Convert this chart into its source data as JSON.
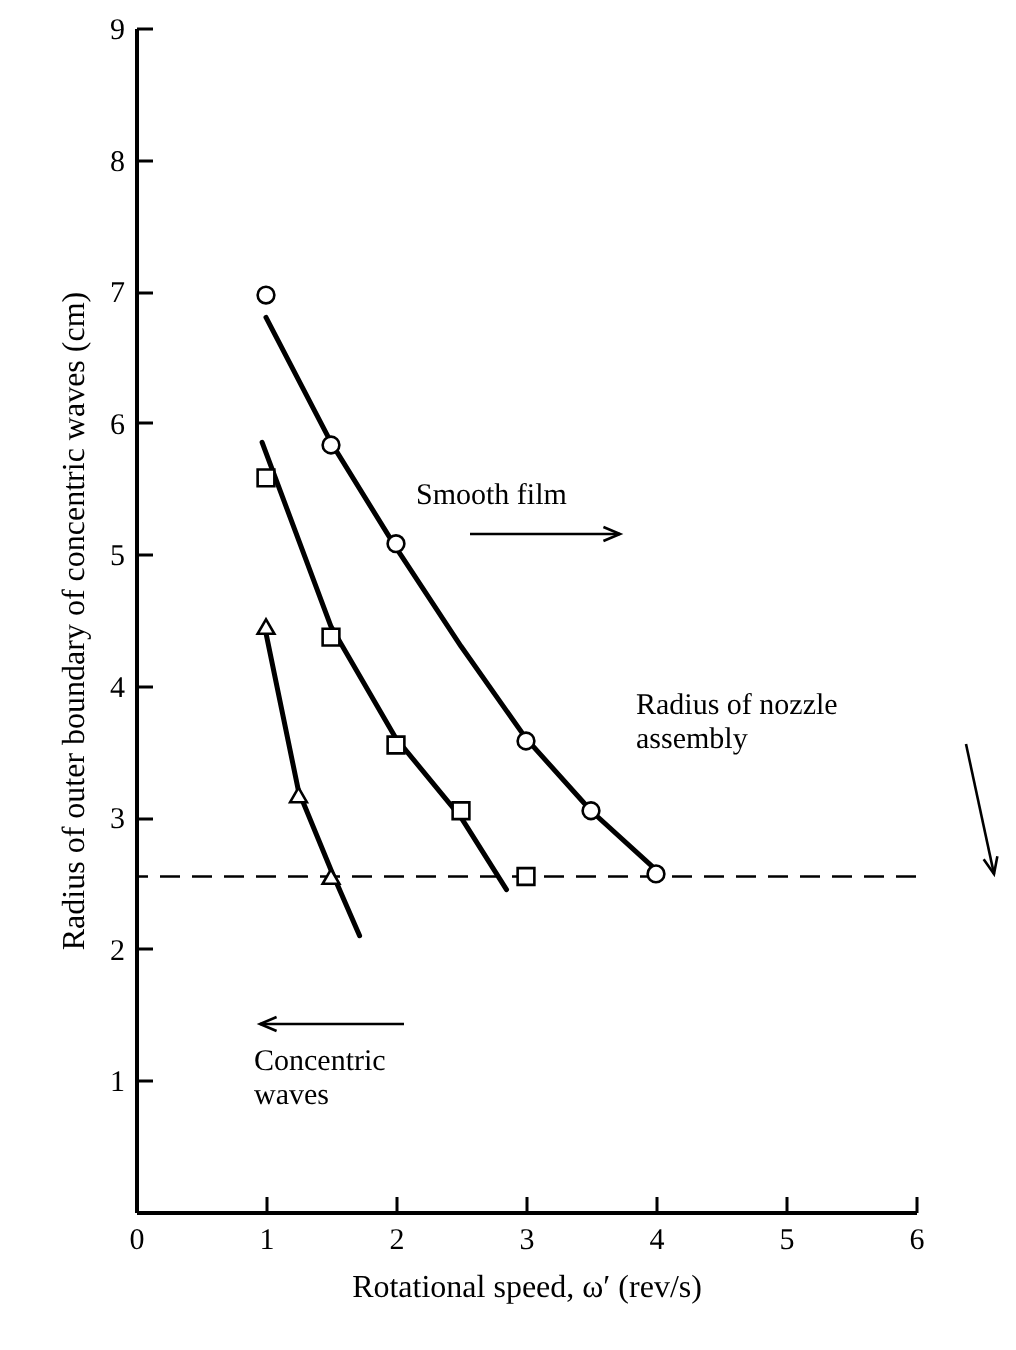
{
  "chart_data": {
    "type": "scatter",
    "xlabel": "Rotational speed, ω′ (rev/s)",
    "ylabel": "Radius of outer boundary of concentric waves (cm)",
    "xlim": [
      0,
      6
    ],
    "xticks": [
      0,
      1,
      2,
      3,
      4,
      5,
      6
    ],
    "ylim": [
      0,
      9
    ],
    "yticks": [
      1,
      2,
      3,
      4,
      5,
      6,
      7,
      8,
      9
    ],
    "grid": false,
    "series": [
      {
        "type": "line",
        "color": "#000000",
        "x": [
          1,
          1.5,
          2,
          2.5,
          3,
          3.5,
          4
        ],
        "values": [
          6.8,
          5.85,
          5.05,
          4.3,
          3.6,
          3.05,
          2.6
        ]
      },
      {
        "type": "line",
        "color": "#000000",
        "x": [
          0.97,
          1.5,
          2,
          2.5,
          2.85
        ],
        "values": [
          5.85,
          4.45,
          3.6,
          3.0,
          2.45
        ]
      },
      {
        "type": "line",
        "color": "#000000",
        "x": [
          1,
          1.25,
          1.5,
          1.72
        ],
        "values": [
          4.4,
          3.2,
          2.6,
          2.1
        ]
      },
      {
        "marker": "circle",
        "color": "#000000",
        "x": [
          1,
          1.5,
          2,
          3,
          3.5,
          4
        ],
        "values": [
          6.97,
          5.83,
          5.08,
          3.58,
          3.05,
          2.57
        ]
      },
      {
        "marker": "square",
        "color": "#000000",
        "x": [
          1,
          1.5,
          2,
          2.5,
          3
        ],
        "values": [
          5.58,
          4.37,
          3.55,
          3.05,
          2.55
        ]
      },
      {
        "marker": "triangle",
        "color": "#000000",
        "x": [
          1,
          1.25,
          1.5
        ],
        "values": [
          4.45,
          3.17,
          2.55
        ]
      }
    ],
    "ref_lines": [
      {
        "axis": "y",
        "value": 2.55,
        "label": "Radius of nozzle assembly",
        "line_style": "dashed",
        "color": "#000000"
      }
    ],
    "annotations": [
      "Smooth film",
      "Concentric waves"
    ]
  }
}
